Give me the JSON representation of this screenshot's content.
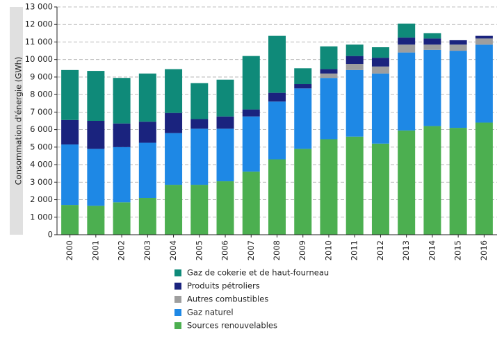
{
  "chart_data": {
    "type": "stacked-bar",
    "ylabel": "Consommation d'énergie (GWh)",
    "categories": [
      "2000",
      "2001",
      "2002",
      "2003",
      "2004",
      "2005",
      "2006",
      "2007",
      "2008",
      "2009",
      "2010",
      "2011",
      "2012",
      "2013",
      "2014",
      "2015",
      "2016"
    ],
    "series": [
      {
        "name": "Gaz de cokerie et de haut-fourneau",
        "color": "#0f8a79",
        "values": [
          2850,
          2850,
          2600,
          2750,
          2500,
          2050,
          2100,
          3050,
          3250,
          900,
          1300,
          650,
          600,
          800,
          300,
          0,
          0
        ]
      },
      {
        "name": "Produits pétroliers",
        "color": "#1a237e",
        "values": [
          1400,
          1600,
          1350,
          1200,
          1150,
          550,
          700,
          400,
          500,
          250,
          250,
          450,
          500,
          400,
          350,
          250,
          150
        ]
      },
      {
        "name": "Autres combustibles",
        "color": "#9e9e9e",
        "values": [
          0,
          0,
          0,
          0,
          0,
          0,
          0,
          0,
          0,
          0,
          250,
          350,
          400,
          450,
          300,
          350,
          350
        ]
      },
      {
        "name": "Gaz naturel",
        "color": "#1e88e5",
        "values": [
          3450,
          3250,
          3150,
          3150,
          2950,
          3200,
          3000,
          3150,
          3300,
          3450,
          3500,
          3800,
          4000,
          4450,
          4350,
          4400,
          4450
        ]
      },
      {
        "name": "Sources renouvelables",
        "color": "#4caf50",
        "values": [
          1700,
          1650,
          1850,
          2100,
          2850,
          2850,
          3050,
          3600,
          4300,
          4900,
          5450,
          5600,
          5200,
          5950,
          6200,
          6100,
          6400
        ]
      }
    ],
    "ylim": [
      0,
      13000
    ],
    "yticks": [
      0,
      {
        "value": 1000,
        "label": "1 000"
      },
      {
        "value": 2000,
        "label": "2 000"
      },
      {
        "value": 3000,
        "label": "3 000"
      },
      {
        "value": 4000,
        "label": "4 000"
      },
      {
        "value": 5000,
        "label": "5 000"
      },
      {
        "value": 6000,
        "label": "6 000"
      },
      {
        "value": 7000,
        "label": "7 000"
      },
      {
        "value": 8000,
        "label": "8 000"
      },
      {
        "value": 9000,
        "label": "9 000"
      },
      {
        "value": 10000,
        "label": "10 000"
      },
      {
        "value": 11000,
        "label": "11 000"
      },
      {
        "value": 12000,
        "label": "12 000"
      },
      {
        "value": 13000,
        "label": "13 000"
      }
    ],
    "grid": true
  }
}
